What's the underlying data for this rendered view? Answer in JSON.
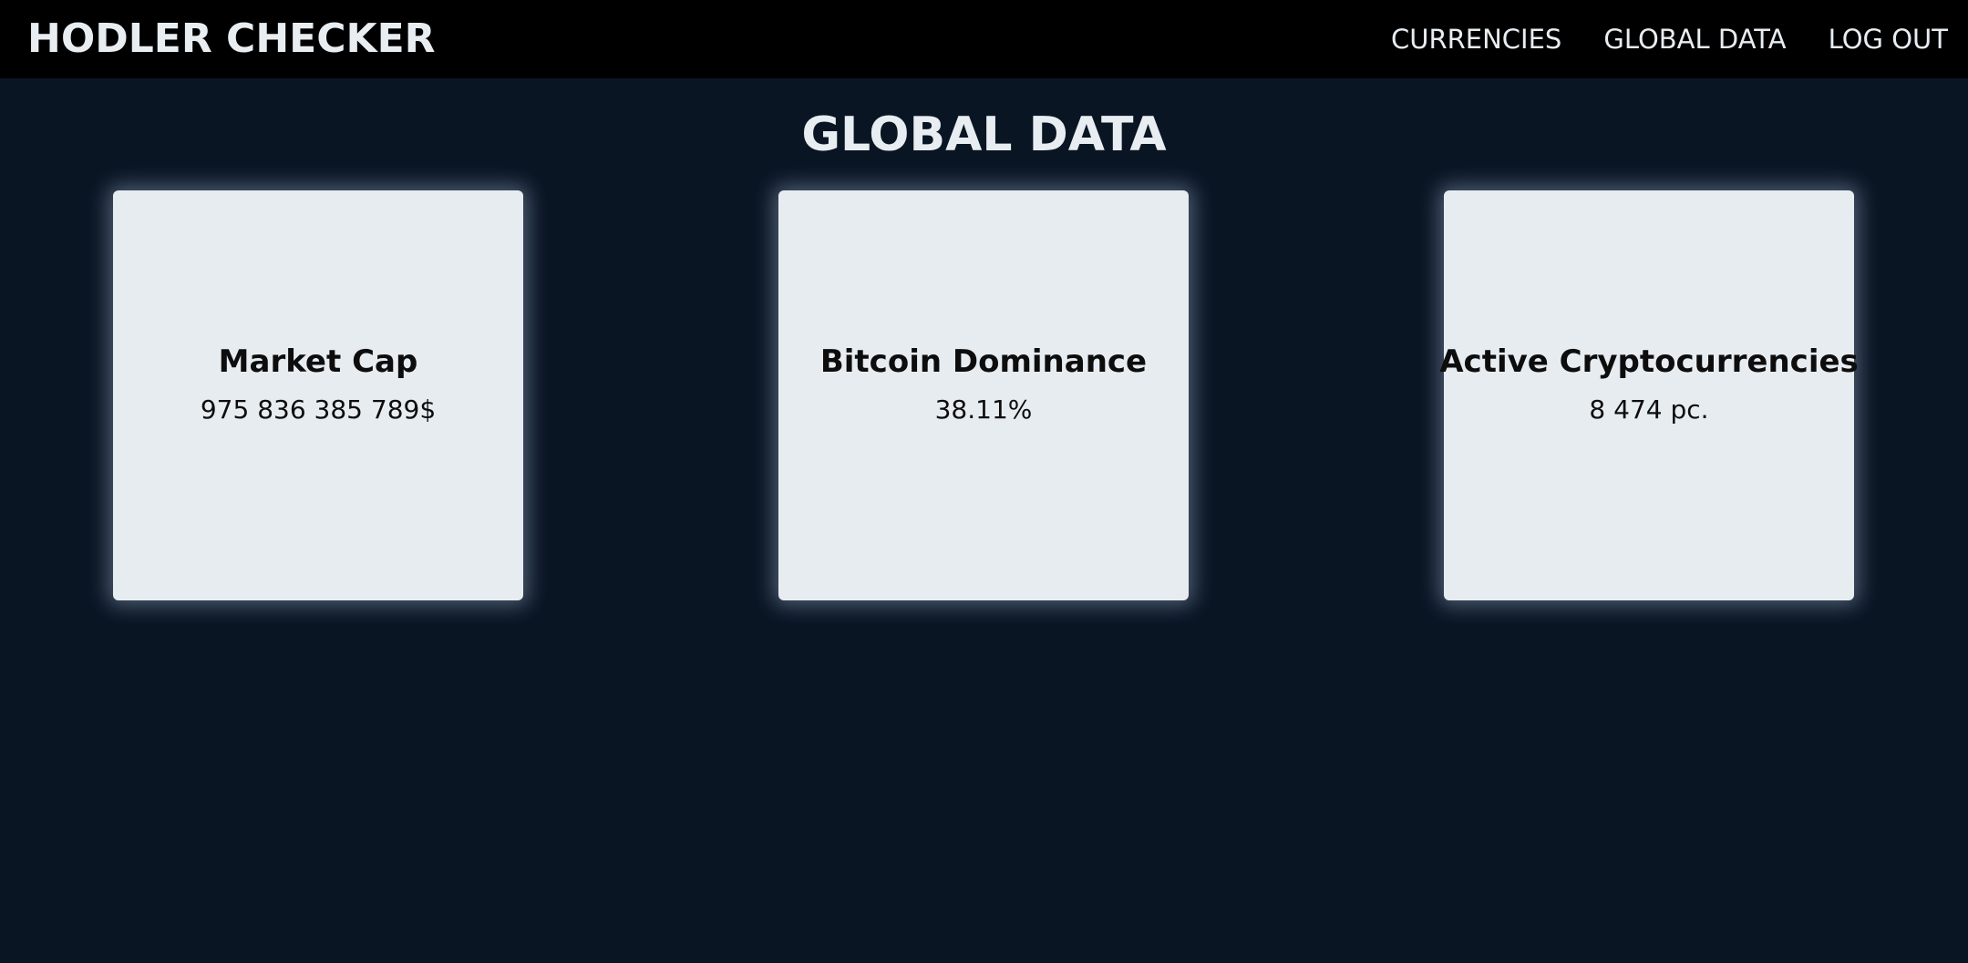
{
  "header": {
    "brand": "HODLER CHECKER",
    "nav": [
      {
        "label": "CURRENCIES"
      },
      {
        "label": "GLOBAL DATA"
      },
      {
        "label": "LOG OUT"
      }
    ]
  },
  "main": {
    "title": "GLOBAL DATA",
    "cards": [
      {
        "title": "Market Cap",
        "value": "975 836 385 789$"
      },
      {
        "title": "Bitcoin Dominance",
        "value": "38.11%"
      },
      {
        "title": "Active Cryptocurrencies",
        "value": "8 474 pc."
      }
    ]
  },
  "colors": {
    "background": "#0a1524",
    "navbar": "#000000",
    "card": "#e7ecf1",
    "text_light": "#e8edf2",
    "text_dark": "#0d0d0d"
  }
}
